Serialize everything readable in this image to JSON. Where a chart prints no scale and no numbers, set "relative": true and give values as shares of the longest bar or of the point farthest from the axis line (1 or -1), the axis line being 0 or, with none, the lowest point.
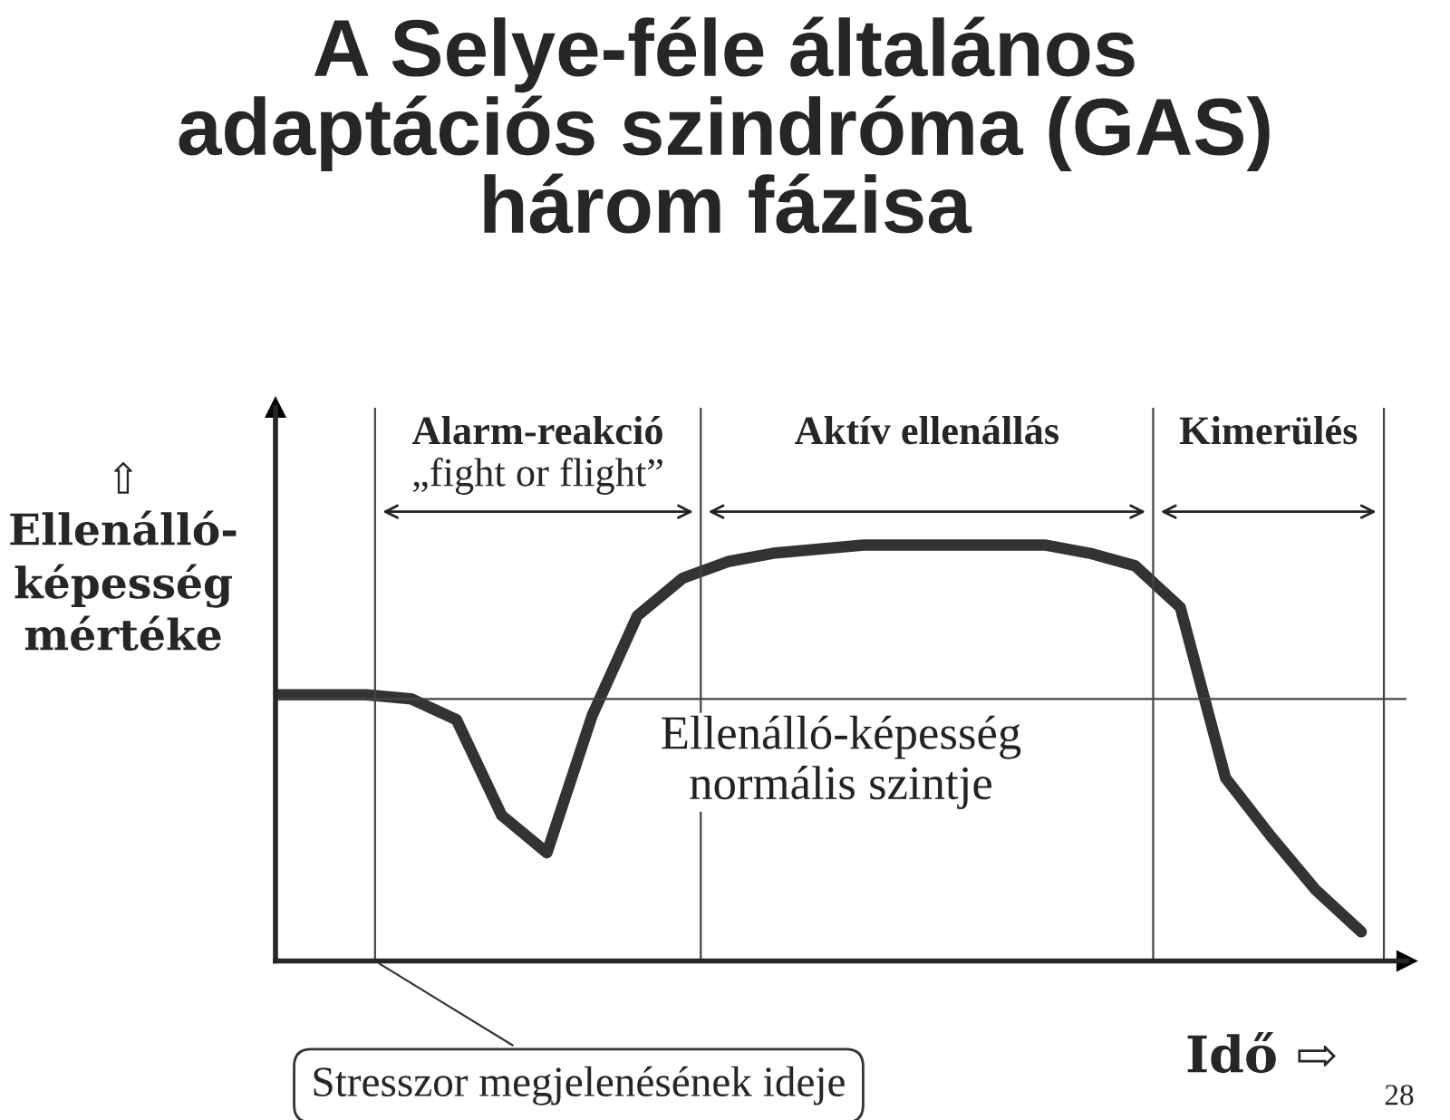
{
  "chart_data": {
    "type": "line",
    "title": "A Selye-féle általános\nadaptációs szindróma (GAS)\nhárom fázisa",
    "xlabel": "Idő ⇨",
    "ylabel": "⇧\nEllenálló-\nképesség\nmértéke",
    "relative": true,
    "marker": "none",
    "line_style": "solid",
    "categories": [
      null,
      null,
      null,
      null,
      null,
      null,
      null,
      null,
      null,
      null,
      null,
      null,
      null,
      null,
      null,
      null,
      null,
      null,
      null,
      null,
      null,
      null,
      null,
      null,
      null
    ],
    "series": [
      {
        "color": "#333333",
        "values": [
          0.64,
          0.64,
          0.64,
          0.63,
          0.58,
          0.35,
          0.26,
          0.59,
          0.83,
          0.92,
          0.96,
          0.98,
          0.99,
          1.0,
          1.0,
          1.0,
          1.0,
          1.0,
          0.98,
          0.95,
          0.85,
          0.44,
          0.3,
          0.17,
          0.07
        ]
      }
    ],
    "ref_lines": [
      {
        "axis": "y",
        "value": 0.63,
        "label": "Ellenálló-képesség\nnormális szintje"
      }
    ],
    "annotations": [
      "Alarm-reakció",
      "„fight or flight”",
      "Aktív ellenállás",
      "Kimerülés",
      "Stresszor megjelenésének ideje",
      "28"
    ]
  }
}
